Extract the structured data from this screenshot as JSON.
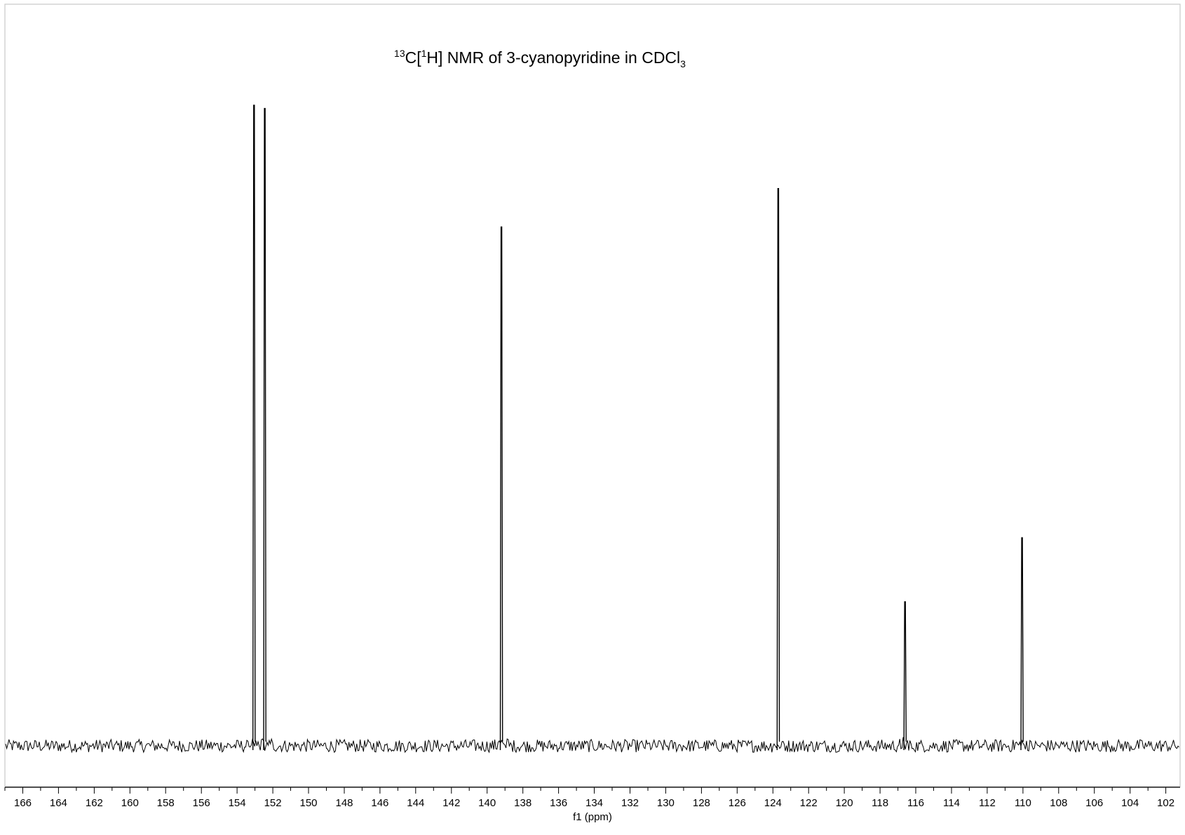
{
  "chart_data": {
    "type": "line",
    "title": {
      "isotope": "13",
      "nucleus": "C[",
      "decouple_isotope": "1",
      "rest": "H] NMR of 3-cyanopyridine in CDCl",
      "subscript": "3"
    },
    "xlabel": "f1 (ppm)",
    "ylabel": "",
    "x_reversed": true,
    "xlim": [
      101.2,
      167.0
    ],
    "ylim": [
      -0.06,
      1.0
    ],
    "grid": false,
    "legend": "none",
    "x_ticks": [
      166,
      164,
      162,
      160,
      158,
      156,
      154,
      152,
      150,
      148,
      146,
      144,
      142,
      140,
      138,
      136,
      134,
      132,
      130,
      128,
      126,
      124,
      122,
      120,
      118,
      116,
      114,
      112,
      110,
      108,
      106,
      104,
      102
    ],
    "x_tick_labels": [
      "166",
      "164",
      "162",
      "160",
      "158",
      "156",
      "154",
      "152",
      "150",
      "148",
      "146",
      "144",
      "142",
      "140",
      "138",
      "136",
      "134",
      "132",
      "130",
      "128",
      "126",
      "124",
      "122",
      "120",
      "118",
      "116",
      "114",
      "112",
      "110",
      "108",
      "106",
      "104",
      "102"
    ],
    "peaks": [
      {
        "ppm": 153.05,
        "intensity": 1.0
      },
      {
        "ppm": 152.45,
        "intensity": 0.995
      },
      {
        "ppm": 139.2,
        "intensity": 0.81
      },
      {
        "ppm": 123.7,
        "intensity": 0.87
      },
      {
        "ppm": 116.6,
        "intensity": 0.225
      },
      {
        "ppm": 110.05,
        "intensity": 0.325
      }
    ],
    "noise_level": 0.01,
    "line_color": "#000000",
    "frame_color": "#c8c8c8"
  }
}
